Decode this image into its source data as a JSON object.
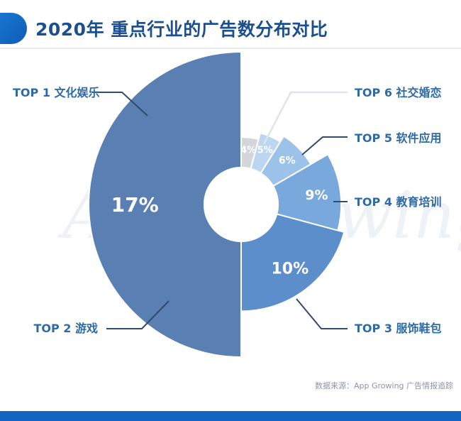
{
  "header": {
    "title": "2020年 重点行业的广告数分布对比"
  },
  "watermark": "App Growing",
  "source": "数据来源：App Growing 广告情报追踪",
  "colors": {
    "brand": "#1565c0",
    "title": "#1b4f8e",
    "label": "#2e6aa6"
  },
  "chart_data": {
    "type": "pie",
    "variant": "rose-donut",
    "categories": [
      "TOP 1 文化娱乐",
      "TOP 2 游戏",
      "TOP 3 服饰鞋包",
      "TOP 4 教育培训",
      "TOP 5 软件应用",
      "TOP 6 社交婚恋"
    ],
    "values": [
      17,
      10,
      9,
      6,
      5,
      4
    ],
    "value_labels": [
      "17%",
      "10%",
      "9%",
      "6%",
      "5%",
      "4%"
    ],
    "colors": [
      "#5a7fb3",
      "#5c8ecb",
      "#79a8dc",
      "#9cc2ea",
      "#bcd6f1",
      "#d3d7dc"
    ]
  }
}
